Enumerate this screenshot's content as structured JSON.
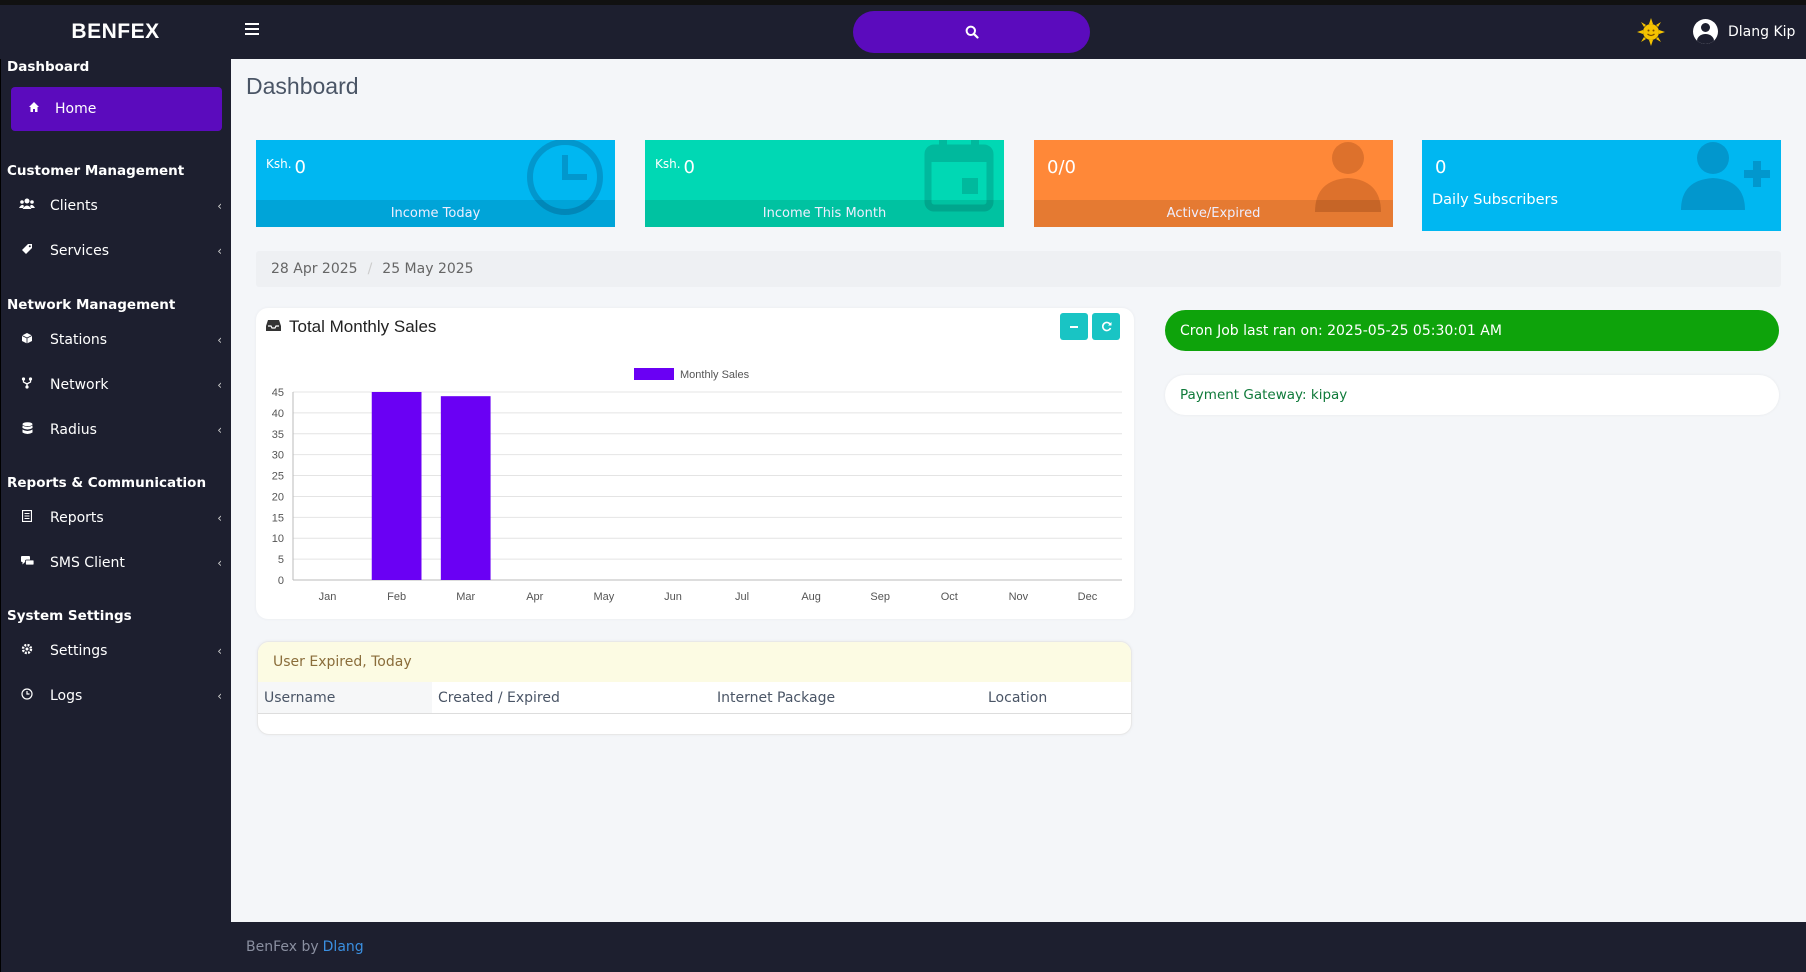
{
  "app": {
    "brand": "BENFEX",
    "user_name": "Dlang Kip"
  },
  "sidebar": {
    "sections": [
      {
        "title": "Dashboard"
      },
      {
        "title": "Customer Management"
      },
      {
        "title": "Network Management"
      },
      {
        "title": "Reports & Communication"
      },
      {
        "title": "System Settings"
      }
    ],
    "items": [
      {
        "label": "Home",
        "icon": "home-icon"
      },
      {
        "label": "Clients",
        "icon": "users-icon"
      },
      {
        "label": "Services",
        "icon": "tag-icon"
      },
      {
        "label": "Stations",
        "icon": "cube-icon"
      },
      {
        "label": "Network",
        "icon": "fork-icon"
      },
      {
        "label": "Radius",
        "icon": "database-icon"
      },
      {
        "label": "Reports",
        "icon": "document-icon"
      },
      {
        "label": "SMS Client",
        "icon": "chat-icon"
      },
      {
        "label": "Settings",
        "icon": "gear-icon"
      },
      {
        "label": "Logs",
        "icon": "clock-icon"
      }
    ]
  },
  "page": {
    "title": "Dashboard"
  },
  "tiles": [
    {
      "prefix": "Ksh.",
      "value": "0",
      "label": "Income Today",
      "color": "#00b7f1",
      "icon": "clock-icon"
    },
    {
      "prefix": "Ksh.",
      "value": "0",
      "label": "Income This Month",
      "color": "#00d8b4",
      "icon": "calendar-icon"
    },
    {
      "prefix": "",
      "value": "0/0",
      "label": "Active/Expired",
      "color": "#ff8838",
      "icon": "user-icon"
    },
    {
      "prefix": "",
      "value": "0",
      "label": "Daily Subscribers",
      "color": "#00b7f1",
      "icon": "user-plus-icon"
    }
  ],
  "breadcrumb": {
    "start": "28 Apr 2025",
    "separator": "/",
    "end": "25 May 2025"
  },
  "sales_card": {
    "title": "Total Monthly Sales"
  },
  "chart_data": {
    "type": "bar",
    "categories": [
      "Jan",
      "Feb",
      "Mar",
      "Apr",
      "May",
      "Jun",
      "Jul",
      "Aug",
      "Sep",
      "Oct",
      "Nov",
      "Dec"
    ],
    "series": [
      {
        "name": "Monthly Sales",
        "values": [
          0,
          45,
          44,
          0,
          0,
          0,
          0,
          0,
          0,
          0,
          0,
          0
        ],
        "color": "#6a00f4"
      }
    ],
    "yticks": [
      0,
      5,
      10,
      15,
      20,
      25,
      30,
      35,
      40,
      45
    ],
    "ylim": [
      0,
      45
    ],
    "grid": true,
    "legend": "top-center"
  },
  "cron": {
    "text": "Cron Job last ran on: 2025-05-25 05:30:01 AM"
  },
  "gateway": {
    "text": "Payment Gateway: kipay"
  },
  "expired": {
    "title": "User Expired, Today",
    "columns": [
      "Username",
      "Created / Expired",
      "Internet Package",
      "Location"
    ]
  },
  "footer": {
    "text": "BenFex by",
    "link": "Dlang"
  }
}
